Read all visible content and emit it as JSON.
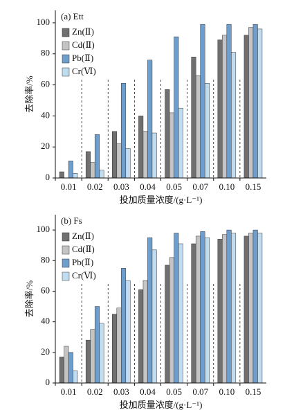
{
  "chart_data": [
    {
      "type": "bar",
      "title": "(a)  Ett",
      "x_label": "投加质量浓度/(g·L⁻¹)",
      "y_label": "去除率/%",
      "categories": [
        "0.01",
        "0.02",
        "0.03",
        "0.04",
        "0.05",
        "0.07",
        "0.10",
        "0.15"
      ],
      "series": [
        {
          "name": "Zn(Ⅱ)",
          "color": "#707070",
          "values": [
            4,
            17,
            30,
            40,
            57,
            78,
            89,
            92
          ]
        },
        {
          "name": "Cd(Ⅱ)",
          "color": "#c4c4c4",
          "values": [
            0,
            10,
            22,
            30,
            42,
            66,
            92,
            97
          ]
        },
        {
          "name": "Pb(Ⅱ)",
          "color": "#6f9dcc",
          "values": [
            11,
            28,
            61,
            76,
            91,
            99,
            99,
            99
          ]
        },
        {
          "name": "Cr(Ⅵ)",
          "color": "#bfdcf0",
          "values": [
            3,
            5,
            19,
            29,
            45,
            61,
            81,
            96
          ]
        }
      ],
      "ylim": [
        0,
        108
      ],
      "yticks": [
        0,
        20,
        40,
        60,
        80,
        100
      ]
    },
    {
      "type": "bar",
      "title": "(b)  Fs",
      "x_label": "投加质量浓度/(g·L⁻¹)",
      "y_label": "去除率/%",
      "categories": [
        "0.01",
        "0.02",
        "0.03",
        "0.04",
        "0.05",
        "0.07",
        "0.10",
        "0.15"
      ],
      "series": [
        {
          "name": "Zn(Ⅱ)",
          "color": "#707070",
          "values": [
            17,
            28,
            45,
            61,
            77,
            91,
            94,
            96
          ]
        },
        {
          "name": "Cd(Ⅱ)",
          "color": "#c4c4c4",
          "values": [
            24,
            35,
            49,
            67,
            82,
            96,
            97,
            98
          ]
        },
        {
          "name": "Pb(Ⅱ)",
          "color": "#6f9dcc",
          "values": [
            20,
            50,
            75,
            95,
            98,
            99,
            100,
            100
          ]
        },
        {
          "name": "Cr(Ⅵ)",
          "color": "#bfdcf0",
          "values": [
            8,
            39,
            67,
            87,
            91,
            95,
            98,
            98
          ]
        }
      ],
      "ylim": [
        0,
        110
      ],
      "yticks": [
        0,
        20,
        40,
        60,
        80,
        100
      ]
    }
  ]
}
